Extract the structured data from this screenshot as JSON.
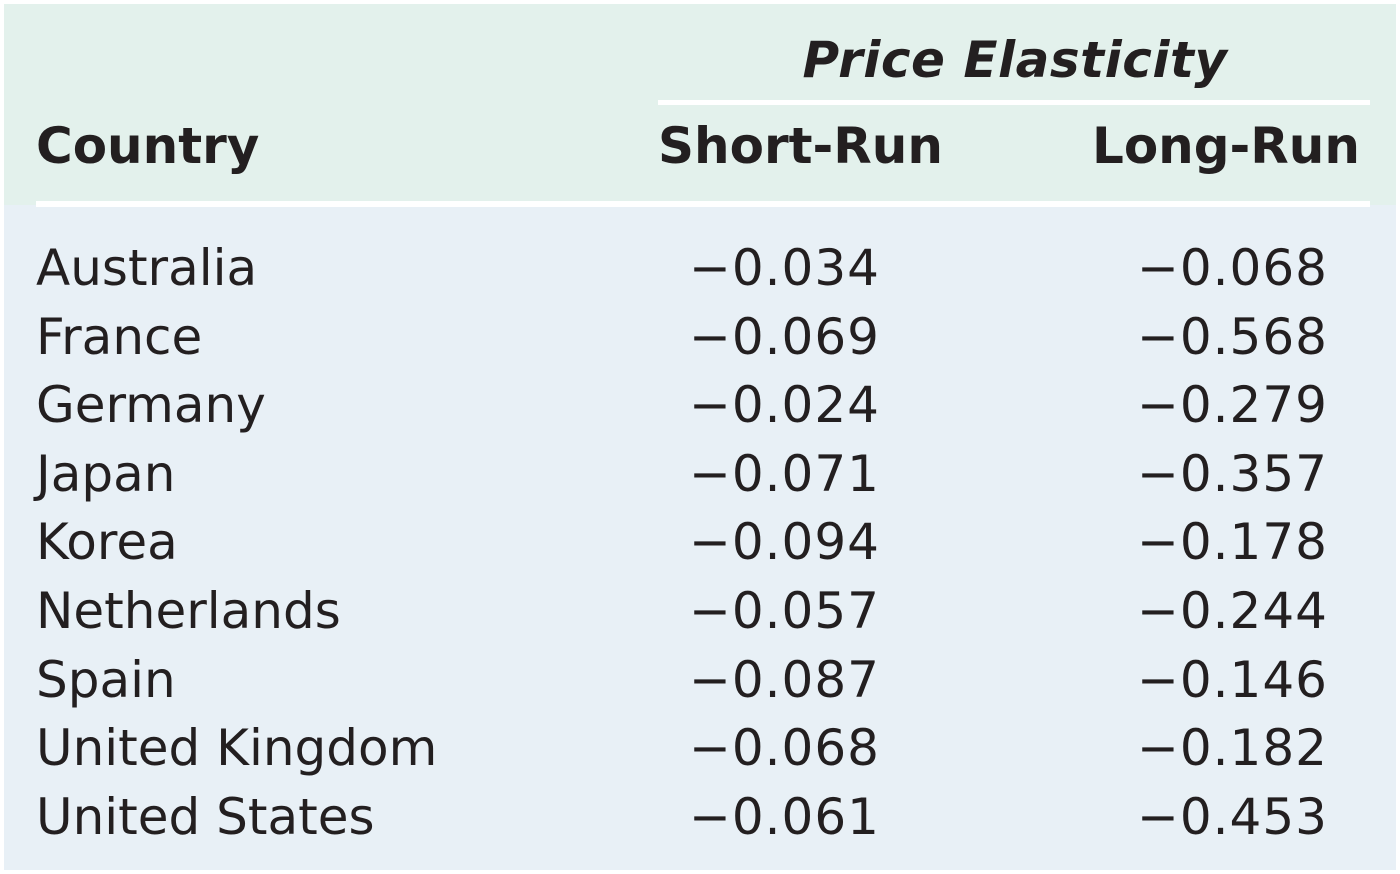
{
  "table": {
    "group_header": "Price Elasticity",
    "columns": {
      "country": "Country",
      "short_run": "Short-Run",
      "long_run": "Long-Run"
    },
    "rows": [
      {
        "country": "Australia",
        "short_run": "−0.034",
        "long_run": "−0.068"
      },
      {
        "country": "France",
        "short_run": "−0.069",
        "long_run": "−0.568"
      },
      {
        "country": "Germany",
        "short_run": "−0.024",
        "long_run": "−0.279"
      },
      {
        "country": "Japan",
        "short_run": "−0.071",
        "long_run": "−0.357"
      },
      {
        "country": "Korea",
        "short_run": "−0.094",
        "long_run": "−0.178"
      },
      {
        "country": "Netherlands",
        "short_run": "−0.057",
        "long_run": "−0.244"
      },
      {
        "country": "Spain",
        "short_run": "−0.087",
        "long_run": "−0.146"
      },
      {
        "country": "United Kingdom",
        "short_run": "−0.068",
        "long_run": "−0.182"
      },
      {
        "country": "United States",
        "short_run": "−0.061",
        "long_run": "−0.453"
      }
    ]
  },
  "colors": {
    "header_background": "#e3f1ec",
    "body_background": "#e8f0f6",
    "rule": "#ffffff",
    "text": "#231f20"
  }
}
